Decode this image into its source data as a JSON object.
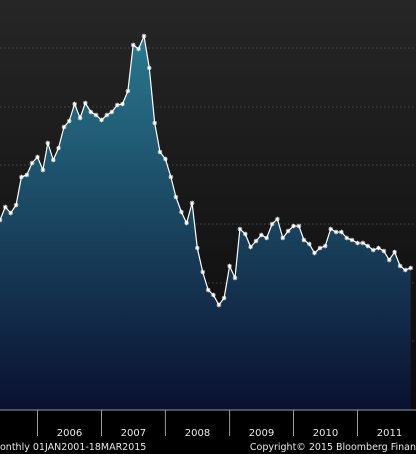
{
  "chart_data": {
    "type": "area",
    "title": "",
    "xlabel": "",
    "ylabel": "",
    "x_tick_labels": [
      "2006",
      "2007",
      "2008",
      "2009",
      "2010",
      "2011"
    ],
    "x_ticks": [
      "2006-01-01",
      "2007-01-01",
      "2008-01-01",
      "2009-01-01",
      "2010-01-01",
      "2011-01-01"
    ],
    "xlim": [
      "2005-06-01",
      "2011-12-01"
    ],
    "ylim": [
      0,
      410
    ],
    "grid": true,
    "legend": "none",
    "colors": {
      "background": "#000000",
      "plot_top": "#262626",
      "plot_bottom": "#0a0a0a",
      "area_top": "#2a7a90",
      "area_bottom": "#0a1030",
      "line": "#ffffff",
      "grid": "#5a5a5a",
      "axis": "#9a9a9a"
    },
    "series": [
      {
        "x": [
          "2005-06-01",
          "2005-07-01",
          "2005-08-01",
          "2005-09-01",
          "2005-10-01",
          "2005-11-01",
          "2005-12-01",
          "2006-01-01",
          "2006-02-01",
          "2006-03-01",
          "2006-04-01",
          "2006-05-01",
          "2006-06-01",
          "2006-07-01",
          "2006-08-01",
          "2006-09-01",
          "2006-10-01",
          "2006-11-01",
          "2006-12-01",
          "2007-01-01",
          "2007-02-01",
          "2007-03-01",
          "2007-04-01",
          "2007-05-01",
          "2007-06-01",
          "2007-07-01",
          "2007-08-01",
          "2007-09-01",
          "2007-10-01",
          "2007-11-01",
          "2007-12-01",
          "2008-01-01",
          "2008-02-01",
          "2008-03-01",
          "2008-04-01",
          "2008-05-01",
          "2008-06-01",
          "2008-07-01",
          "2008-08-01",
          "2008-09-01",
          "2008-10-01",
          "2008-11-01",
          "2008-12-01",
          "2009-01-01",
          "2009-02-01",
          "2009-03-01",
          "2009-04-01",
          "2009-05-01",
          "2009-06-01",
          "2009-07-01",
          "2009-08-01",
          "2009-09-01",
          "2009-10-01",
          "2009-11-01",
          "2009-12-01",
          "2010-01-01",
          "2010-02-01",
          "2010-03-01",
          "2010-04-01",
          "2010-05-01",
          "2010-06-01",
          "2010-07-01",
          "2010-08-01",
          "2010-09-01",
          "2010-10-01",
          "2010-11-01",
          "2010-12-01",
          "2011-01-01",
          "2011-02-01",
          "2011-03-01",
          "2011-04-01",
          "2011-05-01",
          "2011-06-01",
          "2011-07-01",
          "2011-08-01",
          "2011-09-01",
          "2011-10-01",
          "2011-11-01"
        ],
        "values": [
          190,
          203,
          197,
          205,
          233,
          235,
          247,
          253,
          240,
          267,
          250,
          262,
          283,
          289,
          306,
          292,
          307,
          298,
          295,
          290,
          295,
          298,
          305,
          306,
          319,
          365,
          361,
          374,
          342,
          287,
          258,
          251,
          233,
          213,
          198,
          187,
          207,
          162,
          138,
          120,
          115,
          105,
          112,
          144,
          132,
          181,
          176,
          163,
          169,
          175,
          172,
          186,
          191,
          172,
          179,
          184,
          184,
          170,
          166,
          157,
          162,
          164,
          181,
          178,
          178,
          172,
          170,
          167,
          167,
          164,
          160,
          162,
          159,
          150,
          158,
          144,
          140,
          142
        ]
      }
    ],
    "footer_left": "onthly 01JAN2001-18MAR2015",
    "footer_right": "Copyright© 2015 Bloomberg Finan"
  }
}
